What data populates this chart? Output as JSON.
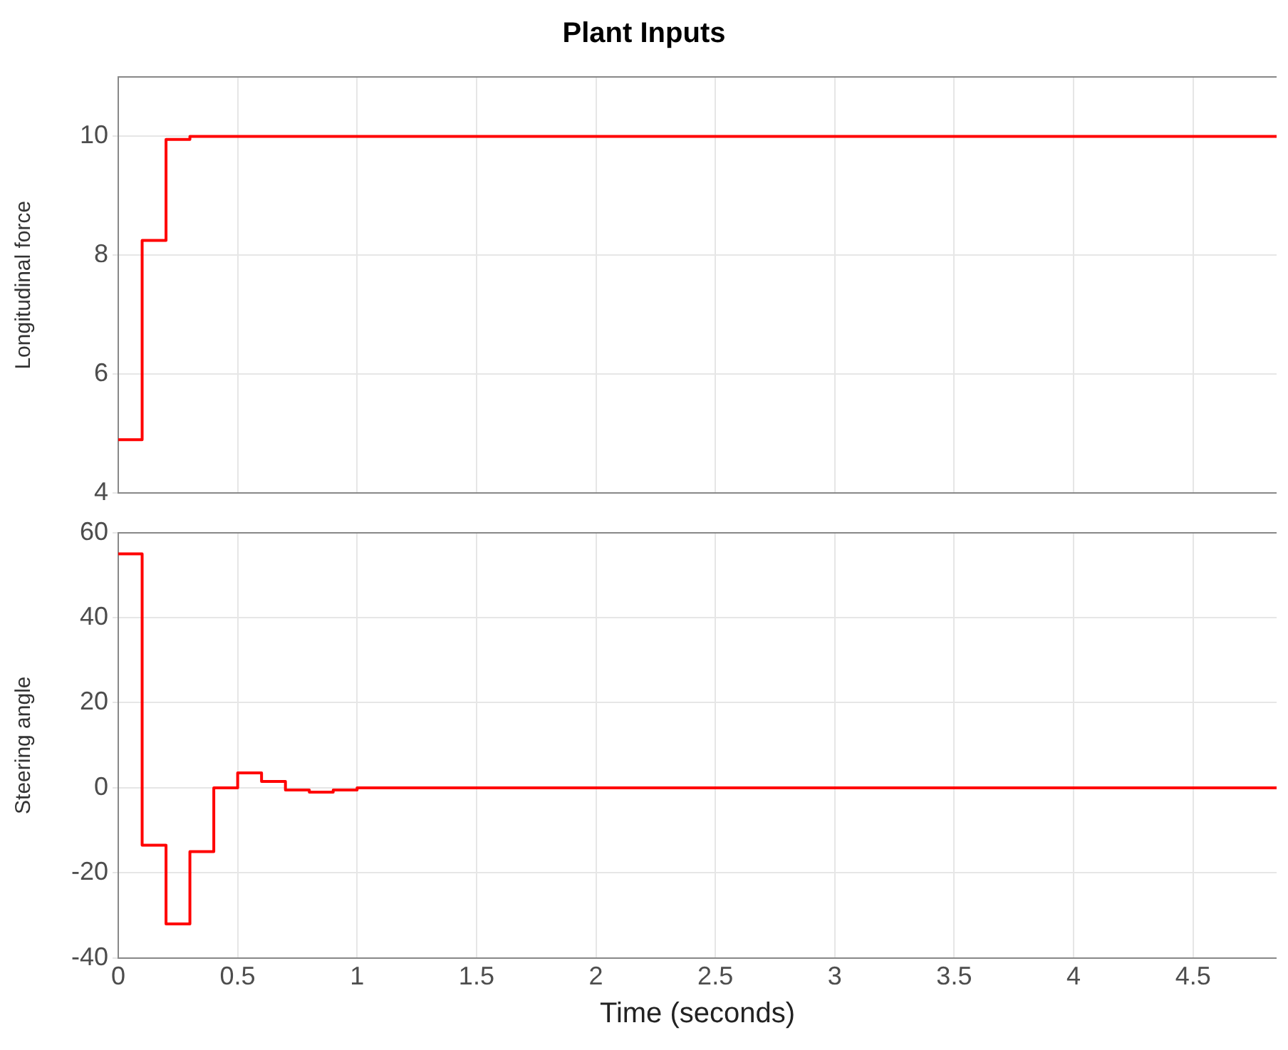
{
  "chart_data": [
    {
      "type": "step",
      "title": "Plant Inputs",
      "ylabel": "Longitudinal force",
      "x": [
        0,
        0.1,
        0.2,
        0.3,
        4.85
      ],
      "series": [
        {
          "color": "#ff0000",
          "values": [
            4.9,
            8.25,
            9.95,
            10,
            10
          ]
        }
      ],
      "xlim": [
        0,
        4.85
      ],
      "xticks": [
        0,
        0.5,
        1,
        1.5,
        2,
        2.5,
        3,
        3.5,
        4,
        4.5
      ],
      "ylim": [
        4,
        11
      ],
      "yticks": [
        4,
        6,
        8,
        10
      ],
      "grid": true,
      "tick_labels": "y"
    },
    {
      "type": "step",
      "xlabel": "Time (seconds)",
      "ylabel": "Steering angle",
      "x": [
        0,
        0.1,
        0.2,
        0.3,
        0.4,
        0.5,
        0.6,
        0.7,
        0.8,
        0.9,
        1.0,
        4.85
      ],
      "series": [
        {
          "color": "#ff0000",
          "values": [
            55,
            -13.5,
            -32,
            -15,
            0,
            3.5,
            1.5,
            -0.5,
            -1,
            -0.5,
            0,
            0
          ]
        }
      ],
      "xlim": [
        0,
        4.85
      ],
      "xticks": [
        0,
        0.5,
        1,
        1.5,
        2,
        2.5,
        3,
        3.5,
        4,
        4.5
      ],
      "ylim": [
        -40,
        60
      ],
      "yticks": [
        -40,
        -20,
        0,
        20,
        40,
        60
      ],
      "grid": true
    }
  ]
}
